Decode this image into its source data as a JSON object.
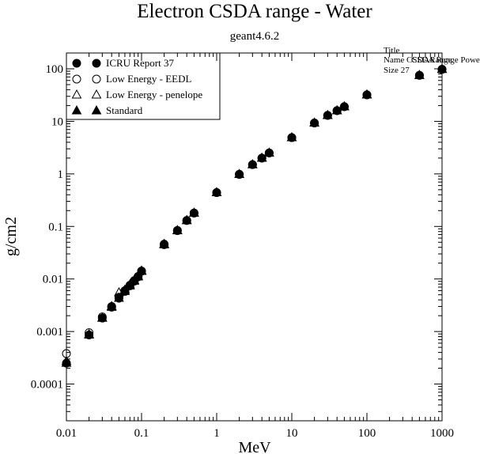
{
  "chart_data": {
    "type": "scatter",
    "title": "Electron CSDA range - Water",
    "subtitle": "geant4.6.2",
    "xlabel": "MeV",
    "ylabel": "g/cm2",
    "x_scale": "log",
    "y_scale": "log",
    "xlim": [
      0.01,
      1000
    ],
    "ylim": [
      2e-05,
      200
    ],
    "grid": false,
    "legend_position": "top-left",
    "x_ticks": [
      0.01,
      0.1,
      1,
      10,
      100,
      1000
    ],
    "x_tick_labels": [
      "0.01",
      "0.1",
      "1",
      "10",
      "100",
      "1000"
    ],
    "y_ticks": [
      0.0001,
      0.001,
      0.01,
      0.1,
      1,
      10,
      100
    ],
    "y_tick_labels": [
      "0.0001",
      "0.001",
      "0.01",
      "0.1",
      "1",
      "10",
      "100"
    ],
    "stats_box": {
      "lines": [
        "Title",
        "Name  CSDARange",
        "Size  27"
      ],
      "overprint": "CSDA Range Power"
    },
    "series": [
      {
        "name": "ICRU Report 37",
        "marker": "filled-circle",
        "x": [
          0.01,
          0.02,
          0.03,
          0.04,
          0.05,
          0.06,
          0.07,
          0.08,
          0.09,
          0.1,
          0.2,
          0.3,
          0.4,
          0.5,
          1,
          2,
          3,
          4,
          5,
          10,
          20,
          30,
          40,
          50,
          100,
          500,
          1000
        ],
        "y": [
          0.00025,
          0.00086,
          0.0018,
          0.0029,
          0.0043,
          0.0058,
          0.0074,
          0.0091,
          0.011,
          0.014,
          0.045,
          0.083,
          0.13,
          0.18,
          0.44,
          0.98,
          1.5,
          2.0,
          2.5,
          4.9,
          9.3,
          13,
          16,
          19,
          32,
          75,
          98
        ]
      },
      {
        "name": "Low Energy - EEDL",
        "marker": "open-circle",
        "x": [
          0.01,
          0.02,
          0.03,
          0.04,
          0.05,
          0.06,
          0.07,
          0.08,
          0.09,
          0.1,
          0.2,
          0.3,
          0.4,
          0.5,
          1,
          2,
          3,
          4,
          5,
          10,
          20,
          30,
          40,
          50,
          100,
          500,
          1000
        ],
        "y": [
          0.00038,
          0.00095,
          0.0019,
          0.003,
          0.0045,
          0.006,
          0.0076,
          0.0093,
          0.0112,
          0.0142,
          0.046,
          0.084,
          0.13,
          0.18,
          0.44,
          0.98,
          1.5,
          2.0,
          2.5,
          4.9,
          9.3,
          13,
          16,
          19,
          32,
          75,
          98
        ]
      },
      {
        "name": "Low Energy - penelope",
        "marker": "open-triangle",
        "x": [
          0.01,
          0.02,
          0.03,
          0.04,
          0.05,
          0.06,
          0.07,
          0.08,
          0.09,
          0.1,
          0.2,
          0.3,
          0.4,
          0.5,
          1,
          2,
          3,
          4,
          5,
          10,
          20,
          30,
          40,
          50,
          100,
          500,
          1000
        ],
        "y": [
          0.00027,
          0.00088,
          0.0018,
          0.003,
          0.0055,
          0.0062,
          0.0078,
          0.0095,
          0.0113,
          0.0143,
          0.046,
          0.084,
          0.13,
          0.18,
          0.44,
          0.98,
          1.5,
          2.0,
          2.5,
          4.9,
          9.3,
          13,
          16,
          19,
          32,
          75,
          98
        ]
      },
      {
        "name": "Standard",
        "marker": "filled-triangle",
        "x": [
          0.01,
          0.02,
          0.03,
          0.04,
          0.05,
          0.06,
          0.07,
          0.08,
          0.09,
          0.1,
          0.2,
          0.3,
          0.4,
          0.5,
          1,
          2,
          3,
          4,
          5,
          10,
          20,
          30,
          40,
          50,
          100,
          500,
          1000
        ],
        "y": [
          0.00025,
          0.00086,
          0.0018,
          0.0029,
          0.0043,
          0.0058,
          0.0074,
          0.0091,
          0.011,
          0.014,
          0.045,
          0.083,
          0.13,
          0.18,
          0.44,
          0.98,
          1.5,
          2.0,
          2.5,
          4.9,
          9.3,
          13,
          16,
          19,
          32,
          75,
          98
        ]
      }
    ]
  }
}
